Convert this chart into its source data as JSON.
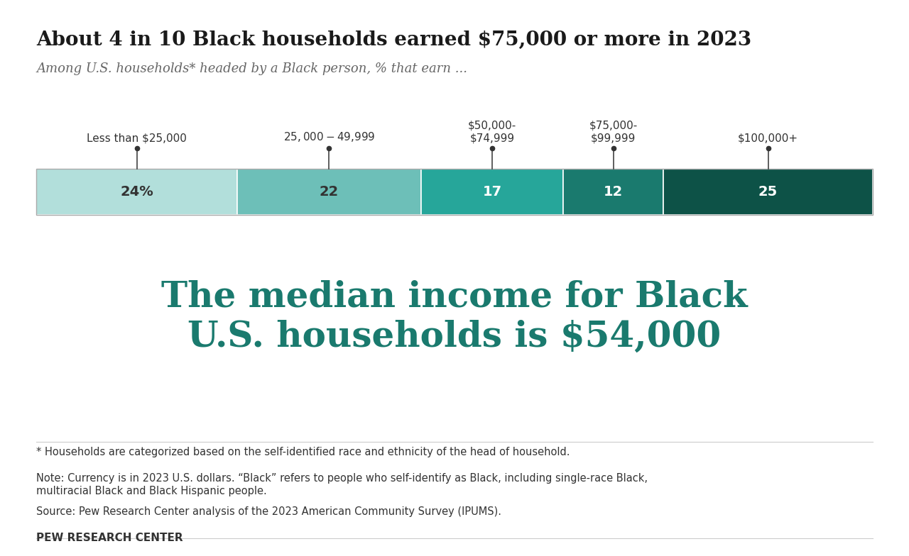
{
  "title": "About 4 in 10 Black households earned $75,000 or more in 2023",
  "subtitle": "Among U.S. households* headed by a Black person, % that earn ...",
  "categories": [
    "Less than $25,000",
    "$25,000-$49,999",
    "$50,000-\n$74,999",
    "$75,000-\n$99,999",
    "$100,000+"
  ],
  "values": [
    24,
    22,
    17,
    12,
    25
  ],
  "bar_colors": [
    "#b2dfdb",
    "#6dbfb8",
    "#26a69a",
    "#1a7a6e",
    "#0d5247"
  ],
  "bar_label_colors": [
    "#333333",
    "#333333",
    "#ffffff",
    "#ffffff",
    "#ffffff"
  ],
  "bar_labels": [
    "24%",
    "22",
    "17",
    "12",
    "25"
  ],
  "highlight_text": "The median income for Black\nU.S. households is $54,000",
  "highlight_color": "#1a7a6e",
  "footnote1": "* Households are categorized based on the self-identified race and ethnicity of the head of household.",
  "footnote2": "Note: Currency is in 2023 U.S. dollars. “Black” refers to people who self-identify as Black, including single-race Black,\nmultiracial Black and Black Hispanic people.",
  "footnote3": "Source: Pew Research Center analysis of the 2023 American Community Survey (IPUMS).",
  "source_label": "PEW RESEARCH CENTER",
  "bg_color": "#ffffff",
  "title_color": "#1a1a1a",
  "subtitle_color": "#666666",
  "footnote_color": "#333333",
  "title_fontsize": 20,
  "subtitle_fontsize": 13,
  "highlight_fontsize": 36,
  "bar_label_fontsize": 14,
  "cat_label_fontsize": 11,
  "footnote_fontsize": 10.5,
  "source_fontsize": 11
}
